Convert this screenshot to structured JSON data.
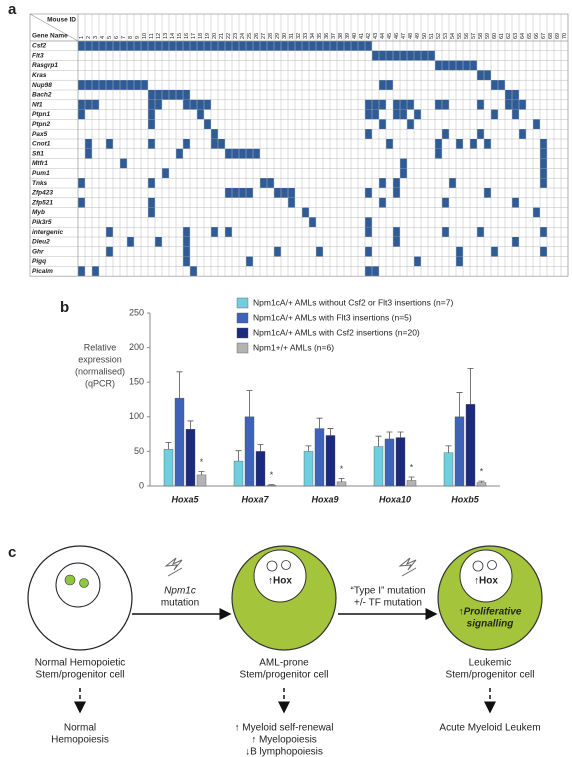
{
  "panel_labels": [
    "a",
    "b",
    "c"
  ],
  "chart_data": [
    {
      "type": "heatmap",
      "corner_labels": [
        "Mouse ID",
        "Gene Name"
      ],
      "color": "#2f5b96",
      "mouse_ids": [
        1,
        2,
        3,
        4,
        5,
        6,
        7,
        8,
        9,
        10,
        11,
        12,
        13,
        14,
        15,
        16,
        17,
        18,
        19,
        20,
        21,
        22,
        23,
        24,
        25,
        26,
        27,
        28,
        29,
        30,
        31,
        32,
        33,
        34,
        35,
        36,
        37,
        38,
        39,
        40,
        41,
        42,
        43,
        44,
        45,
        46,
        47,
        48,
        49,
        50,
        51,
        52,
        53,
        54,
        55,
        56,
        57,
        58,
        59,
        60,
        61,
        62,
        63,
        64,
        65,
        66,
        67,
        68,
        69,
        70
      ],
      "rows": [
        {
          "gene": "Csf2",
          "insertions": [
            1,
            2,
            3,
            4,
            5,
            6,
            7,
            8,
            9,
            10,
            11,
            12,
            13,
            14,
            15,
            16,
            17,
            18,
            19,
            20,
            21,
            22,
            23,
            24,
            25,
            26,
            27,
            28,
            29,
            30,
            31,
            32,
            33,
            34,
            35,
            36,
            37,
            38,
            39,
            40,
            41,
            42
          ]
        },
        {
          "gene": "Flt3",
          "insertions": [
            43,
            44,
            45,
            46,
            47,
            48,
            49,
            50,
            51
          ]
        },
        {
          "gene": "Rasgrp1",
          "insertions": [
            52,
            53,
            54,
            55,
            56,
            57
          ]
        },
        {
          "gene": "Kras",
          "insertions": [
            58,
            59
          ]
        },
        {
          "gene": "Nup98",
          "insertions": [
            1,
            2,
            3,
            4,
            5,
            6,
            7,
            8,
            9,
            10,
            44,
            45,
            60,
            61
          ]
        },
        {
          "gene": "Bach2",
          "insertions": [
            11,
            12,
            13,
            14,
            15,
            16,
            62,
            63
          ]
        },
        {
          "gene": "Nf1",
          "insertions": [
            1,
            2,
            3,
            11,
            12,
            16,
            17,
            18,
            19,
            42,
            43,
            44,
            46,
            47,
            48,
            52,
            53,
            58,
            62,
            63,
            64
          ]
        },
        {
          "gene": "Ptpn1",
          "insertions": [
            1,
            11,
            18,
            42,
            43,
            46,
            47,
            49,
            60,
            63
          ]
        },
        {
          "gene": "Ptpn2",
          "insertions": [
            11,
            19,
            44,
            48,
            66
          ]
        },
        {
          "gene": "Pax5",
          "insertions": [
            20,
            42,
            53,
            58,
            64
          ]
        },
        {
          "gene": "Cnot1",
          "insertions": [
            2,
            5,
            11,
            16,
            20,
            21,
            45,
            52,
            55,
            57,
            59,
            67
          ]
        },
        {
          "gene": "Sfi1",
          "insertions": [
            2,
            15,
            22,
            23,
            24,
            25,
            26,
            52,
            67
          ]
        },
        {
          "gene": "Mtfr1",
          "insertions": [
            7,
            47,
            67
          ]
        },
        {
          "gene": "Pum1",
          "insertions": [
            13,
            47,
            67
          ]
        },
        {
          "gene": "Tnks",
          "insertions": [
            1,
            11,
            27,
            28,
            44,
            46,
            54,
            67
          ]
        },
        {
          "gene": "Zfp423",
          "insertions": [
            22,
            23,
            24,
            25,
            29,
            30,
            31,
            42,
            46,
            59
          ]
        },
        {
          "gene": "Zfp521",
          "insertions": [
            1,
            11,
            31,
            44,
            53,
            63
          ]
        },
        {
          "gene": "Myb",
          "insertions": [
            11,
            33,
            66
          ]
        },
        {
          "gene": "Pik3r5",
          "insertions": [
            34,
            42
          ]
        },
        {
          "gene": "intergenic",
          "insertions": [
            5,
            16,
            20,
            22,
            42,
            46,
            53,
            58,
            67
          ]
        },
        {
          "gene": "Dleu2",
          "insertions": [
            8,
            12,
            16,
            46,
            63
          ]
        },
        {
          "gene": "Ghr",
          "insertions": [
            5,
            16,
            29,
            35,
            42,
            55,
            60,
            67
          ]
        },
        {
          "gene": "Pigq",
          "insertions": [
            16,
            25,
            49,
            55
          ]
        },
        {
          "gene": "Picalm",
          "insertions": [
            1,
            3,
            17,
            42,
            43
          ]
        }
      ]
    },
    {
      "type": "bar",
      "ylabel": [
        "Relative",
        "expression",
        "(normalised)",
        "(qPCR)"
      ],
      "categories": [
        "Hoxa5",
        "Hoxa7",
        "Hoxa9",
        "Hoxa10",
        "Hoxb5"
      ],
      "ylim": [
        0,
        250
      ],
      "yticks": [
        0,
        50,
        100,
        150,
        200,
        250
      ],
      "series": [
        {
          "name": "Npm1cA/+ AMLs without Csf2 or Flt3 insertions (n=7)",
          "color": "#6fcfe0",
          "values": [
            53,
            36,
            50,
            57,
            48
          ],
          "errors": [
            10,
            15,
            8,
            15,
            10
          ]
        },
        {
          "name": "Npm1cA/+ AMLs with Flt3 insertions (n=5)",
          "color": "#3f63b8",
          "values": [
            127,
            100,
            83,
            68,
            100
          ],
          "errors": [
            38,
            38,
            15,
            10,
            35
          ]
        },
        {
          "name": "Npm1cA/+ AMLs with Csf2 insertions (n=20)",
          "color": "#1b2a7e",
          "values": [
            82,
            50,
            73,
            70,
            118
          ],
          "errors": [
            12,
            10,
            10,
            8,
            52
          ]
        },
        {
          "name": "Npm1+/+ AMLs (n=6)",
          "color": "#b3b3b3",
          "values": [
            16,
            1,
            6,
            8,
            5
          ],
          "errors": [
            5,
            1,
            5,
            5,
            2
          ],
          "markers": [
            "*",
            "*",
            "*",
            "*",
            "*"
          ]
        }
      ]
    }
  ],
  "diagram": {
    "stages": [
      {
        "name": [
          "Normal Hemopoietic",
          "Stem/progenitor cell"
        ],
        "outcome": [
          "Normal",
          "Hemopoiesis"
        ]
      },
      {
        "name": [
          "AML-prone",
          "Stem/progenitor cell"
        ],
        "inner": "↑Hox",
        "outcome": [
          "↑ Myeloid self-renewal",
          "↑ Myelopoiesis",
          "↓B lymphopoiesis"
        ]
      },
      {
        "name": [
          "Leukemic",
          "Stem/progenitor cell"
        ],
        "inner": "↑Hox",
        "signal": [
          "↑Proliferative",
          "signalling"
        ],
        "outcome": [
          "Acute Myeloid Leukem"
        ]
      }
    ],
    "transitions": [
      [
        "Npm1c",
        "mutation"
      ],
      [
        "“Type I” mutation",
        "+/- TF mutation"
      ]
    ]
  }
}
